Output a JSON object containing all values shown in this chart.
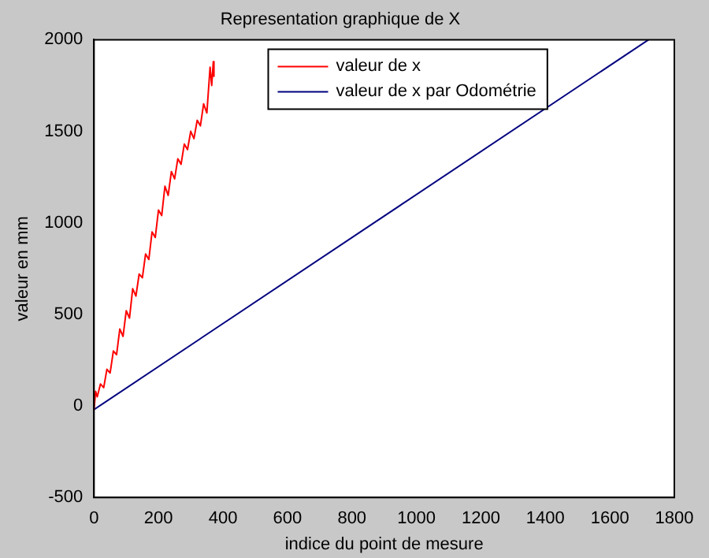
{
  "chart_data": {
    "type": "line",
    "title": "Representation graphique de X",
    "xlabel": "indice du point de mesure",
    "ylabel": "valeur en mm",
    "xlim": [
      0,
      1800
    ],
    "xticks": [
      0,
      200,
      400,
      600,
      800,
      1000,
      1200,
      1400,
      1600,
      1800
    ],
    "ylim": [
      -500,
      2000
    ],
    "yticks": [
      -500,
      0,
      500,
      1000,
      1500,
      2000
    ],
    "grid": false,
    "legend": "top",
    "marker": "none",
    "line_style": "solid",
    "series": [
      {
        "name": "valeur de x",
        "color": "#ff0000",
        "x": [
          0,
          5,
          10,
          20,
          30,
          40,
          50,
          60,
          70,
          80,
          90,
          100,
          110,
          120,
          130,
          140,
          150,
          160,
          170,
          180,
          190,
          200,
          210,
          220,
          230,
          240,
          250,
          260,
          270,
          280,
          290,
          300,
          310,
          320,
          330,
          340,
          350,
          360,
          365,
          370,
          372
        ],
        "values": [
          -20,
          80,
          50,
          120,
          100,
          200,
          180,
          300,
          280,
          420,
          380,
          520,
          480,
          640,
          600,
          720,
          700,
          830,
          800,
          950,
          920,
          1070,
          1040,
          1200,
          1150,
          1280,
          1240,
          1350,
          1320,
          1430,
          1400,
          1500,
          1460,
          1560,
          1530,
          1650,
          1600,
          1850,
          1750,
          1880,
          1800
        ]
      },
      {
        "name": "valeur de x par Odométrie",
        "color": "#00007f",
        "x": [
          0,
          1720
        ],
        "values": [
          -20,
          2000
        ]
      }
    ]
  }
}
